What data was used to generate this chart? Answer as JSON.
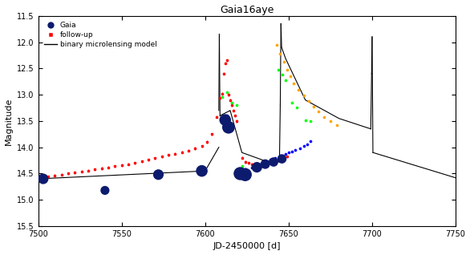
{
  "title": "Gaia16aye",
  "xlabel": "JD-2450000 [d]",
  "ylabel": "Magnitude",
  "xlim": [
    7500,
    7750
  ],
  "ylim": [
    15.5,
    11.5
  ],
  "yticks": [
    11.5,
    12.0,
    12.5,
    13.0,
    13.5,
    14.0,
    14.5,
    15.0,
    15.5
  ],
  "xticks": [
    7500,
    7550,
    7600,
    7650,
    7700,
    7750
  ],
  "gaia_color": "#0d1b6e",
  "model_color": "black",
  "background_color": "white",
  "gaia_points": [
    [
      7503,
      14.6,
      90
    ],
    [
      7540,
      14.82,
      65
    ],
    [
      7572,
      14.52,
      90
    ],
    [
      7598,
      14.45,
      110
    ],
    [
      7612,
      13.48,
      110
    ],
    [
      7614,
      13.62,
      130
    ],
    [
      7621,
      14.5,
      140
    ],
    [
      7624,
      14.52,
      140
    ],
    [
      7631,
      14.38,
      90
    ],
    [
      7636,
      14.32,
      75
    ],
    [
      7641,
      14.28,
      70
    ],
    [
      7646,
      14.22,
      70
    ]
  ],
  "red_points": [
    [
      7503,
      14.58
    ],
    [
      7506,
      14.56
    ],
    [
      7510,
      14.54
    ],
    [
      7514,
      14.52
    ],
    [
      7518,
      14.5
    ],
    [
      7522,
      14.48
    ],
    [
      7526,
      14.46
    ],
    [
      7530,
      14.44
    ],
    [
      7534,
      14.42
    ],
    [
      7538,
      14.4
    ],
    [
      7542,
      14.38
    ],
    [
      7546,
      14.36
    ],
    [
      7550,
      14.34
    ],
    [
      7554,
      14.32
    ],
    [
      7558,
      14.3
    ],
    [
      7562,
      14.27
    ],
    [
      7566,
      14.24
    ],
    [
      7570,
      14.21
    ],
    [
      7574,
      14.18
    ],
    [
      7578,
      14.15
    ],
    [
      7582,
      14.12
    ],
    [
      7586,
      14.09
    ],
    [
      7590,
      14.06
    ],
    [
      7594,
      14.02
    ],
    [
      7598,
      13.98
    ],
    [
      7601,
      13.9
    ],
    [
      7604,
      13.75
    ],
    [
      7607,
      13.42
    ],
    [
      7609,
      13.06
    ],
    [
      7610,
      12.98
    ],
    [
      7611,
      12.6
    ],
    [
      7612,
      12.4
    ],
    [
      7613,
      12.35
    ],
    [
      7614,
      13.0
    ],
    [
      7615,
      13.1
    ],
    [
      7616,
      13.2
    ],
    [
      7617,
      13.3
    ],
    [
      7618,
      13.4
    ],
    [
      7619,
      13.5
    ],
    [
      7622,
      14.2
    ],
    [
      7624,
      14.28
    ],
    [
      7626,
      14.3
    ],
    [
      7628,
      14.32
    ],
    [
      7631,
      14.35
    ],
    [
      7634,
      14.35
    ],
    [
      7637,
      14.32
    ],
    [
      7640,
      14.28
    ],
    [
      7643,
      14.25
    ],
    [
      7646,
      14.22
    ],
    [
      7649,
      14.18
    ]
  ],
  "red_yerr": 0.025,
  "blue_points": [
    [
      7612,
      13.48
    ],
    [
      7613,
      13.4
    ],
    [
      7620,
      14.5
    ],
    [
      7622,
      14.45
    ],
    [
      7624,
      14.42
    ],
    [
      7628,
      14.38
    ],
    [
      7632,
      14.32
    ],
    [
      7636,
      14.28
    ],
    [
      7639,
      14.24
    ],
    [
      7642,
      14.2
    ],
    [
      7645,
      14.16
    ],
    [
      7648,
      14.12
    ],
    [
      7650,
      14.1
    ],
    [
      7652,
      14.08
    ],
    [
      7654,
      14.05
    ],
    [
      7657,
      14.02
    ],
    [
      7659,
      13.98
    ],
    [
      7661,
      13.94
    ],
    [
      7663,
      13.88
    ]
  ],
  "green_points": [
    [
      7610,
      13.05
    ],
    [
      7613,
      12.95
    ],
    [
      7616,
      13.15
    ],
    [
      7619,
      13.2
    ],
    [
      7622,
      14.35
    ],
    [
      7644,
      12.52
    ],
    [
      7646,
      12.62
    ],
    [
      7648,
      12.72
    ],
    [
      7652,
      13.15
    ],
    [
      7655,
      13.25
    ],
    [
      7660,
      13.48
    ],
    [
      7663,
      13.5
    ]
  ],
  "orange_points": [
    [
      7643,
      12.05
    ],
    [
      7645,
      12.22
    ],
    [
      7647,
      12.38
    ],
    [
      7649,
      12.52
    ],
    [
      7651,
      12.65
    ],
    [
      7653,
      12.78
    ],
    [
      7656,
      12.9
    ],
    [
      7659,
      13.02
    ],
    [
      7662,
      13.12
    ],
    [
      7665,
      13.22
    ],
    [
      7668,
      13.32
    ],
    [
      7671,
      13.42
    ],
    [
      7675,
      13.5
    ],
    [
      7679,
      13.58
    ]
  ],
  "model_segments": [
    {
      "t_start": 7500,
      "t_end": 7608.3,
      "type": "rise"
    },
    {
      "t_start": 7608.3,
      "t_end": 7608.7,
      "type": "spike1_up"
    },
    {
      "t_start": 7608.7,
      "t_end": 7609.1,
      "type": "spike1_down"
    },
    {
      "t_start": 7609.1,
      "t_end": 7644.8,
      "type": "plateau1"
    },
    {
      "t_start": 7644.8,
      "t_end": 7645.2,
      "type": "spike2_up"
    },
    {
      "t_start": 7645.2,
      "t_end": 7645.6,
      "type": "spike2_down"
    },
    {
      "t_start": 7645.6,
      "t_end": 7699.5,
      "type": "decay"
    },
    {
      "t_start": 7699.5,
      "t_end": 7699.9,
      "type": "spike3_up"
    },
    {
      "t_start": 7699.9,
      "t_end": 7700.3,
      "type": "spike3_down"
    },
    {
      "t_start": 7700.3,
      "t_end": 7750,
      "type": "tail"
    }
  ]
}
